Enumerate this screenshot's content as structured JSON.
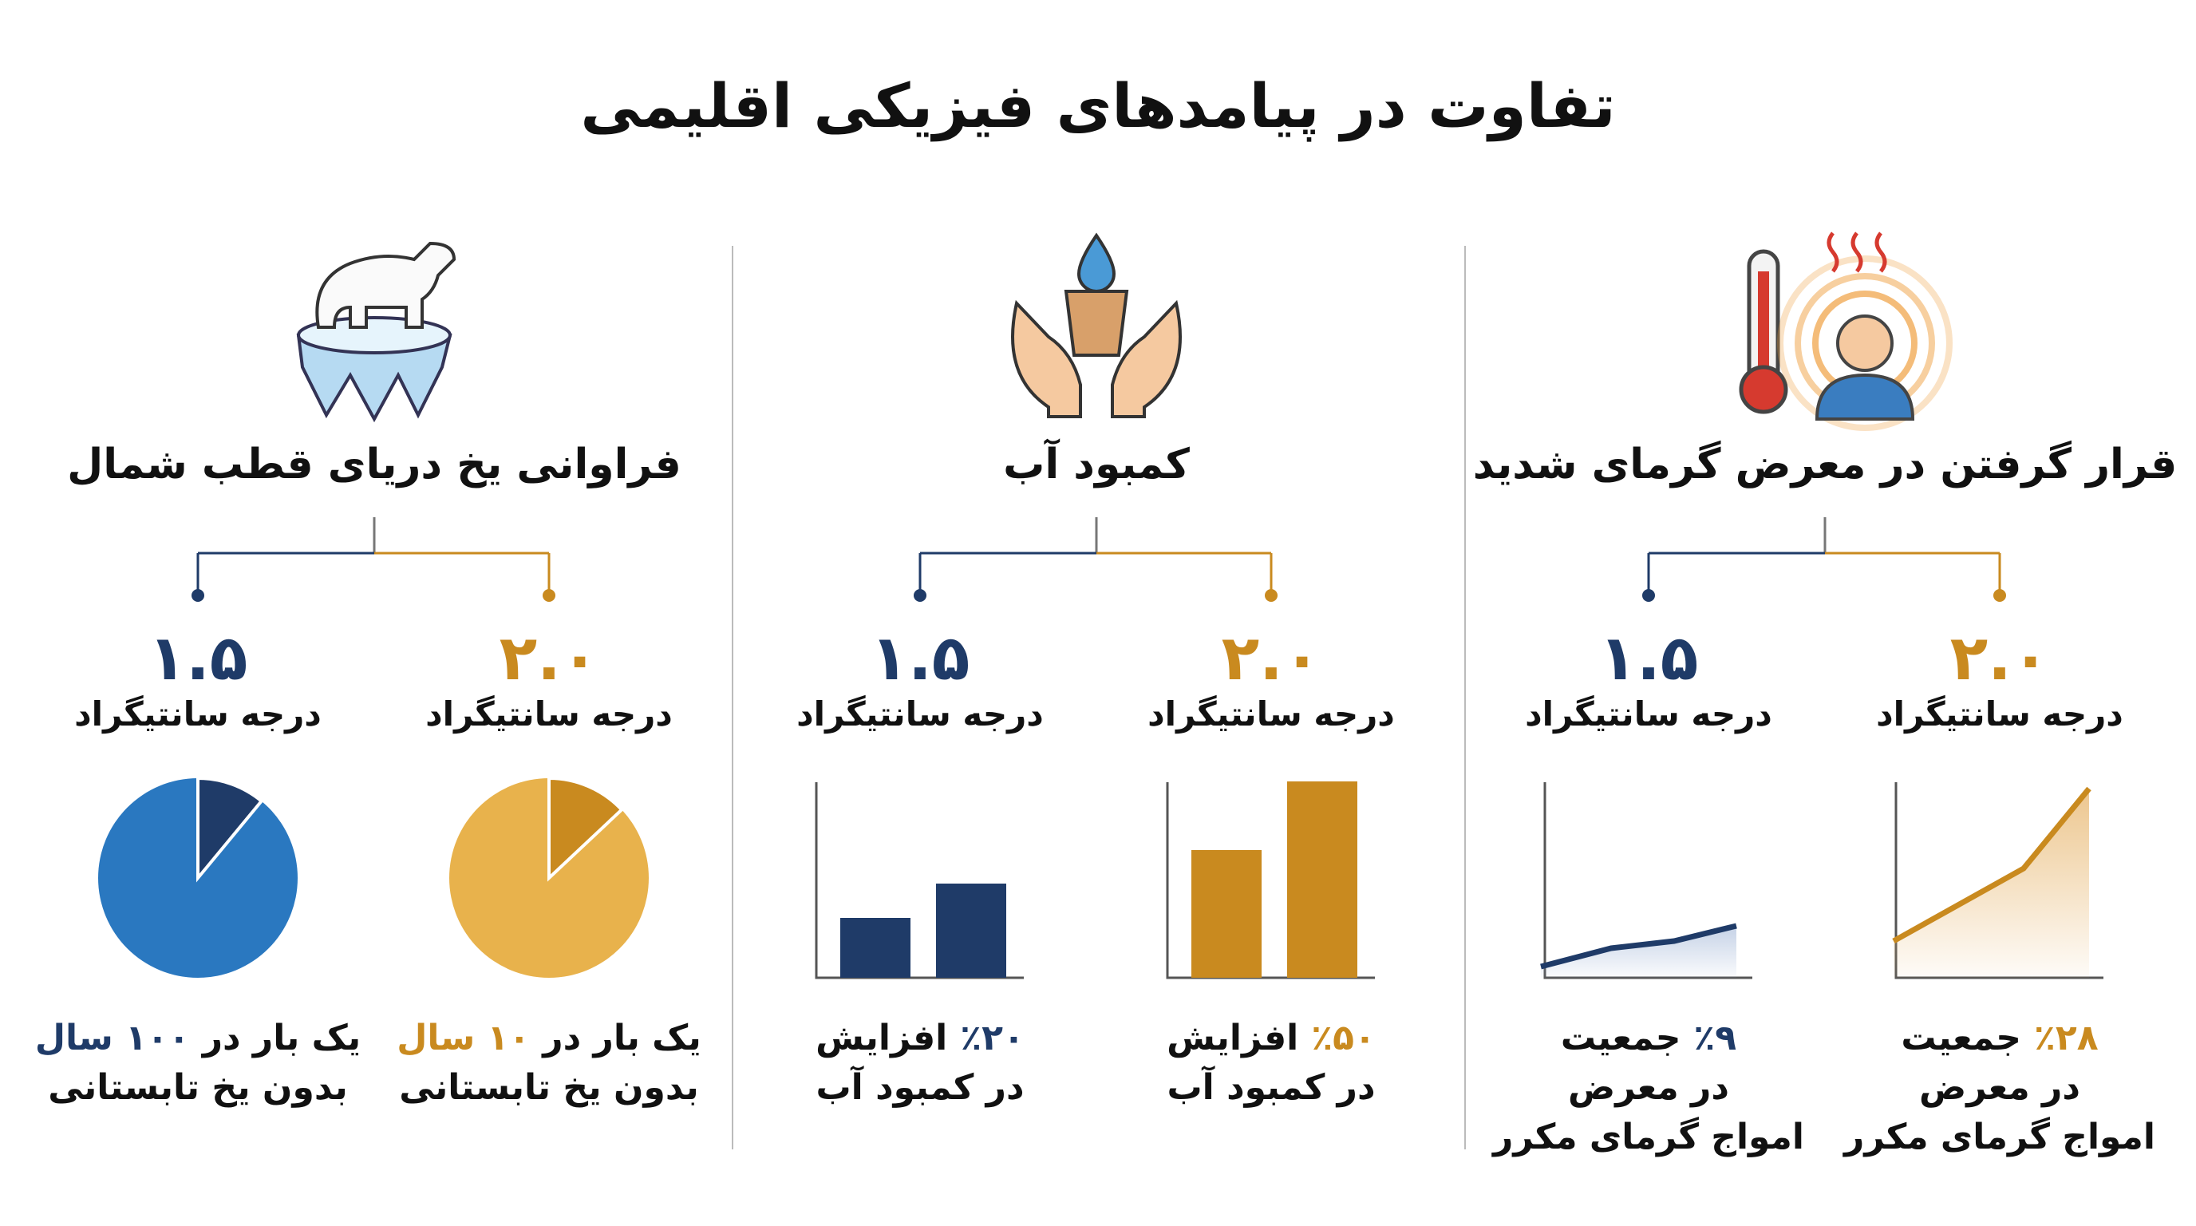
{
  "title": "تفاوت در پیامدهای فیزیکی اقلیمی",
  "colors": {
    "low": "#1f3b68",
    "high": "#c98a1f"
  },
  "columns": [
    {
      "heading": "قرار گرفتن در معرض گرمای شدید",
      "scenarios": [
        {
          "temp": "۲.۰",
          "unit": "درجه سانتیگراد",
          "line1": [
            {
              "text": "٪۲۸",
              "accent": true
            },
            {
              "text": "جمعیت"
            }
          ],
          "lines": [
            "در معرض",
            "امواج گرمای مکرر"
          ]
        },
        {
          "temp": "۱.۵",
          "unit": "درجه سانتیگراد",
          "line1": [
            {
              "text": "٪۹",
              "accent": true
            },
            {
              "text": "جمعیت"
            }
          ],
          "lines": [
            "در معرض",
            "امواج گرمای مکرر"
          ]
        }
      ]
    },
    {
      "heading": "کمبود آب",
      "scenarios": [
        {
          "temp": "۲.۰",
          "unit": "درجه سانتیگراد",
          "line1": [
            {
              "text": "٪۵۰",
              "accent": true
            },
            {
              "text": "افزایش"
            }
          ],
          "lines": [
            "در کمبود آب"
          ]
        },
        {
          "temp": "۱.۵",
          "unit": "درجه سانتیگراد",
          "line1": [
            {
              "text": "٪۲۰",
              "accent": true
            },
            {
              "text": "افزایش"
            }
          ],
          "lines": [
            "در کمبود آب"
          ]
        }
      ]
    },
    {
      "heading": "فراوانی یخ دریای قطب شمال",
      "scenarios": [
        {
          "temp": "۲.۰",
          "unit": "درجه سانتیگراد",
          "line1": [
            {
              "text": "یک بار در"
            },
            {
              "text": "۱۰ سال",
              "accent": true
            }
          ],
          "lines": [
            "بدون یخ تابستانی"
          ]
        },
        {
          "temp": "۱.۵",
          "unit": "درجه سانتیگراد",
          "line1": [
            {
              "text": "یک بار در"
            },
            {
              "text": "۱۰۰ سال",
              "accent": true
            }
          ],
          "lines": [
            "بدون یخ تابستانی"
          ]
        }
      ]
    }
  ]
}
